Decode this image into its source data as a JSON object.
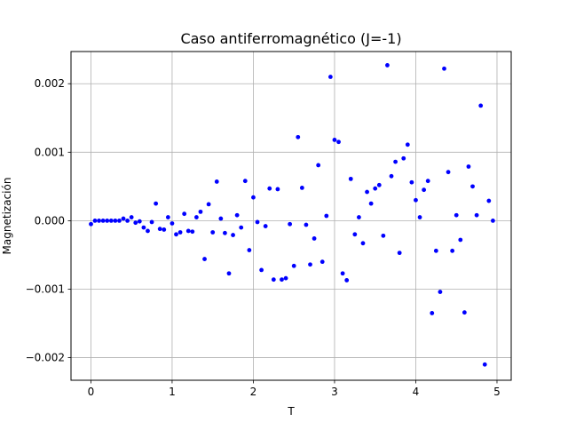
{
  "chart_data": {
    "type": "scatter",
    "title": "Caso antiferromagnético (J=-1)",
    "xlabel": "T",
    "ylabel": "Magnetización",
    "xlim": [
      -0.245,
      5.175
    ],
    "ylim": [
      -0.00233,
      0.00247
    ],
    "x_ticks": [
      0,
      1,
      2,
      3,
      4,
      5
    ],
    "x_tick_labels": [
      "0",
      "1",
      "2",
      "3",
      "4",
      "5"
    ],
    "y_ticks": [
      -0.002,
      -0.001,
      0.0,
      0.001,
      0.002
    ],
    "y_tick_labels": [
      "−0.002",
      "−0.001",
      "0.000",
      "0.001",
      "0.002"
    ],
    "grid": true,
    "marker_color": "#0000ff",
    "series": [
      {
        "x": [
          0.001,
          0.05,
          0.1,
          0.15,
          0.2,
          0.25,
          0.3,
          0.35,
          0.4,
          0.45,
          0.5,
          0.55,
          0.6,
          0.65,
          0.7,
          0.75,
          0.8,
          0.85,
          0.9,
          0.95,
          1.0,
          1.05,
          1.1,
          1.15,
          1.2,
          1.25,
          1.3,
          1.35,
          1.4,
          1.45,
          1.5,
          1.55,
          1.6,
          1.65,
          1.7,
          1.75,
          1.8,
          1.85,
          1.9,
          1.95,
          2.0,
          2.05,
          2.1,
          2.15,
          2.2,
          2.25,
          2.3,
          2.35,
          2.4,
          2.45,
          2.5,
          2.55,
          2.6,
          2.65,
          2.7,
          2.75,
          2.8,
          2.85,
          2.9,
          2.95,
          3.0,
          3.05,
          3.1,
          3.15,
          3.2,
          3.25,
          3.3,
          3.35,
          3.4,
          3.45,
          3.5,
          3.55,
          3.6,
          3.65,
          3.7,
          3.75,
          3.8,
          3.85,
          3.9,
          3.95,
          4.0,
          4.05,
          4.1,
          4.15,
          4.2,
          4.25,
          4.3,
          4.35,
          4.4,
          4.45,
          4.5,
          4.55,
          4.6,
          4.65,
          4.7,
          4.75,
          4.8,
          4.85,
          4.9,
          4.95
        ],
        "y": [
          -5e-05,
          0.0,
          0.0,
          0.0,
          0.0,
          0.0,
          0.0,
          0.0,
          3e-05,
          0.0,
          5e-05,
          -3e-05,
          -1e-05,
          -0.0001,
          -0.00015,
          -2e-05,
          0.00025,
          -0.00012,
          -0.00013,
          5e-05,
          -4e-05,
          -0.0002,
          -0.00017,
          0.0001,
          -0.00015,
          -0.00016,
          5e-05,
          0.00013,
          -0.00056,
          0.00024,
          -0.00017,
          0.00057,
          3e-05,
          -0.00018,
          -0.00077,
          -0.00021,
          8e-05,
          -0.0001,
          0.00058,
          -0.00043,
          0.00034,
          -2e-05,
          -0.00072,
          -8e-05,
          0.00047,
          -0.00086,
          0.00046,
          -0.00086,
          -0.00084,
          -5e-05,
          -0.00066,
          0.00122,
          0.00048,
          -6e-05,
          -0.00064,
          -0.00026,
          0.00081,
          -0.0006,
          7e-05,
          0.0021,
          0.00118,
          0.00115,
          -0.00077,
          -0.00087,
          0.00061,
          -0.0002,
          5e-05,
          -0.00033,
          0.00042,
          0.00025,
          0.00047,
          0.00052,
          -0.00022,
          0.00227,
          0.00065,
          0.00086,
          -0.00047,
          0.00091,
          0.00111,
          0.00056,
          0.0003,
          5e-05,
          0.00045,
          0.00058,
          -0.00135,
          -0.00044,
          -0.00104,
          0.00222,
          0.00071,
          -0.00044,
          8e-05,
          -0.00028,
          -0.00134,
          0.00079,
          0.0005,
          8e-05,
          0.00168,
          -0.0021,
          0.00029,
          0.0
        ]
      }
    ]
  }
}
